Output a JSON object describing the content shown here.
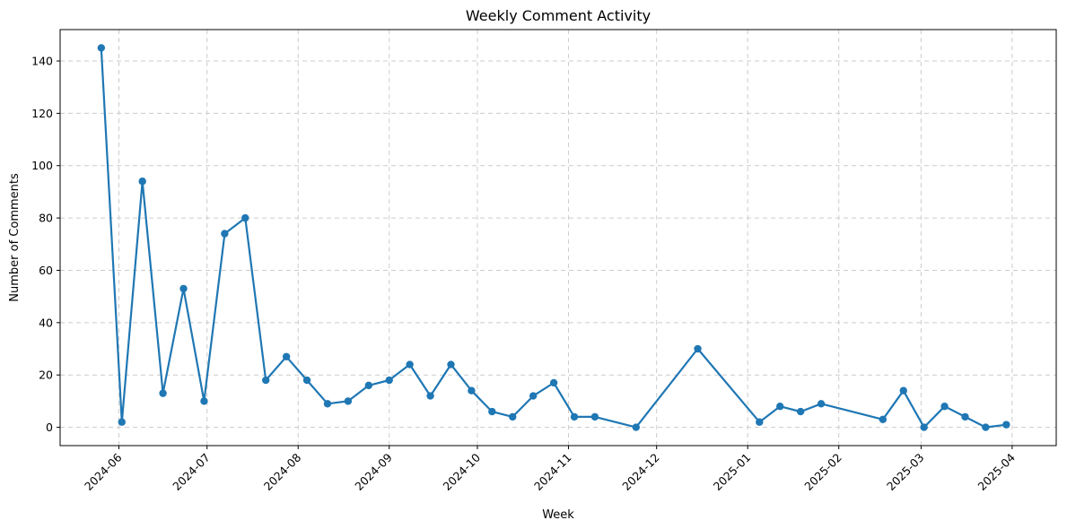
{
  "chart_data": {
    "type": "line",
    "title": "Weekly Comment Activity",
    "xlabel": "Week",
    "ylabel": "Number of Comments",
    "x_axis_type": "date",
    "xlim": [
      "2024-05-12",
      "2025-04-16"
    ],
    "ylim": [
      -7,
      152
    ],
    "grid": true,
    "yticks": [
      0,
      20,
      40,
      60,
      80,
      100,
      120,
      140
    ],
    "xticks": [
      "2024-06-01",
      "2024-07-01",
      "2024-08-01",
      "2024-09-01",
      "2024-10-01",
      "2024-11-01",
      "2024-12-01",
      "2025-01-01",
      "2025-02-01",
      "2025-03-01",
      "2025-04-01"
    ],
    "xtick_labels": [
      "2024-06",
      "2024-07",
      "2024-08",
      "2024-09",
      "2024-10",
      "2024-11",
      "2024-12",
      "2025-01",
      "2025-02",
      "2025-03",
      "2025-04"
    ],
    "series": [
      {
        "color": "#1f77b4",
        "x": [
          "2024-05-26",
          "2024-06-02",
          "2024-06-09",
          "2024-06-16",
          "2024-06-23",
          "2024-06-30",
          "2024-07-07",
          "2024-07-14",
          "2024-07-21",
          "2024-07-28",
          "2024-08-04",
          "2024-08-11",
          "2024-08-18",
          "2024-08-25",
          "2024-09-01",
          "2024-09-08",
          "2024-09-15",
          "2024-09-22",
          "2024-09-29",
          "2024-10-06",
          "2024-10-13",
          "2024-10-20",
          "2024-10-27",
          "2024-11-03",
          "2024-11-10",
          "2024-11-24",
          "2024-12-15",
          "2025-01-05",
          "2025-01-12",
          "2025-01-19",
          "2025-01-26",
          "2025-02-16",
          "2025-02-23",
          "2025-03-02",
          "2025-03-09",
          "2025-03-16",
          "2025-03-23",
          "2025-03-30"
        ],
        "values": [
          145,
          2,
          94,
          13,
          53,
          10,
          74,
          80,
          18,
          27,
          18,
          9,
          10,
          16,
          18,
          24,
          12,
          24,
          14,
          6,
          4,
          12,
          17,
          4,
          4,
          0,
          30,
          2,
          8,
          6,
          9,
          3,
          14,
          0,
          8,
          4,
          0,
          1
        ]
      }
    ]
  }
}
